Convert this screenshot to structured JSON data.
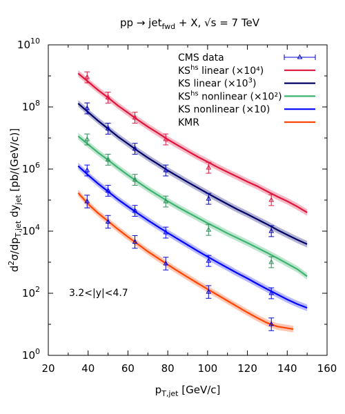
{
  "chart_data": {
    "type": "line",
    "title_main": "pp → jet",
    "title_sub": "fwd",
    "title_rest": " + X, √s = 7 TeV",
    "xlabel_main": "p",
    "xlabel_sub": "T,jet",
    "xlabel_rest": " [GeV/c]",
    "ylabel_lead": "d",
    "ylabel_sup": "2",
    "ylabel_a": "σ/dp",
    "ylabel_sub1": "T,jet",
    "ylabel_b": " dy",
    "ylabel_sub2": "jet",
    "ylabel_c": " [pb/(GeV/c)]",
    "annotation": "3.2<|y|<4.7",
    "xlim": [
      20,
      160
    ],
    "ylim": [
      1,
      10000000000
    ],
    "yscale": "log",
    "x_ticks": [
      "20",
      "40",
      "60",
      "80",
      "100",
      "120",
      "140",
      "160"
    ],
    "y_ticks": [
      {
        "base": "10",
        "exp": "0"
      },
      {
        "base": "10",
        "exp": "2"
      },
      {
        "base": "10",
        "exp": "4"
      },
      {
        "base": "10",
        "exp": "6"
      },
      {
        "base": "10",
        "exp": "8"
      },
      {
        "base": "10",
        "exp": "10"
      }
    ],
    "legend": [
      {
        "key": "data",
        "text": "CMS data",
        "sup": "",
        "rest": ""
      },
      {
        "key": "kshs_lin",
        "text": "KS",
        "sup": "hs",
        "rest": " linear (×10⁴)"
      },
      {
        "key": "ks_lin",
        "text": "KS linear (×10",
        "sup": "3",
        "rest": ")"
      },
      {
        "key": "kshs_nonlin",
        "text": "KS",
        "sup": "hs",
        "rest": " nonlinear (×10²)"
      },
      {
        "key": "ks_nonlin",
        "text": "KS nonlinear (×10)",
        "sup": "",
        "rest": ""
      },
      {
        "key": "kmr",
        "text": "KMR",
        "sup": "",
        "rest": ""
      }
    ],
    "data_series": [
      {
        "key": "kshs_lin",
        "color": "#dc143c",
        "points": [
          [
            39.5,
            900000000
          ],
          [
            50,
            200000000
          ],
          [
            63.5,
            45000000
          ],
          [
            79,
            9000000
          ],
          [
            100.5,
            1100000
          ],
          [
            132,
            100000
          ]
        ],
        "yerr_factor": 1.5
      },
      {
        "key": "ks_lin",
        "color": "#0000aa",
        "points": [
          [
            39.5,
            90000000
          ],
          [
            50,
            20000000
          ],
          [
            63.5,
            4500000
          ],
          [
            79,
            900000
          ],
          [
            100.5,
            110000
          ],
          [
            132,
            10000
          ]
        ],
        "yerr_factor": 1.5
      },
      {
        "key": "kshs_nonlin",
        "color": "#2e8b57",
        "points": [
          [
            39.5,
            9000000
          ],
          [
            50,
            2000000
          ],
          [
            63.5,
            450000
          ],
          [
            79,
            90000
          ],
          [
            100.5,
            11000
          ],
          [
            132,
            1000
          ]
        ],
        "yerr_factor": 1.5
      },
      {
        "key": "ks_nonlin",
        "color": "#0000ff",
        "points": [
          [
            39.5,
            900000
          ],
          [
            50,
            200000
          ],
          [
            63.5,
            45000
          ],
          [
            79,
            9000
          ],
          [
            100.5,
            1100
          ],
          [
            132,
            100
          ]
        ],
        "yerr_factor": 1.5
      },
      {
        "key": "kmr",
        "color": "#0000cc",
        "points": [
          [
            39.5,
            90000
          ],
          [
            50,
            20000
          ],
          [
            63.5,
            4500
          ],
          [
            79,
            900
          ],
          [
            100.5,
            110
          ],
          [
            132,
            10
          ]
        ],
        "yerr_factor": 1.6
      }
    ],
    "series": [
      {
        "key": "kshs_lin",
        "color": "#dc143c",
        "band_color": "#f4a0b0",
        "x": [
          35,
          40,
          45,
          50,
          55,
          60,
          65,
          70,
          75,
          80,
          85,
          90,
          95,
          100,
          105,
          110,
          115,
          120,
          125,
          130,
          135,
          140,
          145,
          150
        ],
        "y": [
          1200000000,
          650000000,
          350000000,
          200000000,
          110000000,
          65000000,
          38000000,
          23000000,
          14500000,
          9000000,
          5800000,
          3800000,
          2500000,
          1700000,
          1150000,
          800000,
          560000,
          390000,
          280000,
          190000,
          130000,
          92000,
          62000,
          40000
        ]
      },
      {
        "key": "ks_lin",
        "color": "#000066",
        "band_color": "#9999c8",
        "x": [
          35,
          40,
          45,
          50,
          55,
          60,
          65,
          70,
          75,
          80,
          85,
          90,
          95,
          100,
          105,
          110,
          115,
          120,
          125,
          130,
          135,
          140,
          145,
          150
        ],
        "y": [
          130000000,
          68000000,
          36000000,
          20000000,
          11000000,
          6500000,
          3800000,
          2300000,
          1450000,
          900000,
          580000,
          380000,
          250000,
          165000,
          110000,
          74000,
          50000,
          35000,
          24000,
          16500,
          11000,
          7600,
          5300,
          3800
        ]
      },
      {
        "key": "kshs_nonlin",
        "color": "#3cb371",
        "band_color": "#a8dcbc",
        "x": [
          35,
          40,
          45,
          50,
          55,
          60,
          65,
          70,
          75,
          80,
          85,
          90,
          95,
          100,
          105,
          110,
          115,
          120,
          125,
          130,
          135,
          140,
          145,
          150
        ],
        "y": [
          11500000,
          6200000,
          3400000,
          1950000,
          1100000,
          640000,
          380000,
          230000,
          145000,
          92000,
          60000,
          40000,
          27000,
          18000,
          12500,
          8500,
          6000,
          4200,
          2900,
          2000,
          1350,
          900,
          600,
          350
        ]
      },
      {
        "key": "ks_nonlin",
        "color": "#0000ff",
        "band_color": "#a0a0ff",
        "x": [
          35,
          40,
          45,
          50,
          55,
          60,
          65,
          70,
          75,
          80,
          85,
          90,
          95,
          100,
          105,
          110,
          115,
          120,
          125,
          130,
          135,
          140,
          145,
          150
        ],
        "y": [
          1250000,
          640000,
          340000,
          190000,
          105000,
          62000,
          37000,
          22500,
          14000,
          8800,
          5600,
          3600,
          2300,
          1500,
          990,
          660,
          440,
          300,
          200,
          135,
          92,
          63,
          45,
          34
        ]
      },
      {
        "key": "kmr",
        "color": "#ff4500",
        "band_color": "#ffb49a",
        "x": [
          35,
          40,
          45,
          50,
          55,
          60,
          65,
          70,
          75,
          80,
          85,
          90,
          95,
          100,
          105,
          110,
          115,
          120,
          125,
          130,
          135,
          140,
          143
        ],
        "y": [
          170000,
          75000,
          38000,
          21000,
          11500,
          6500,
          3800,
          2200,
          1350,
          830,
          520,
          330,
          210,
          135,
          88,
          57,
          37,
          24,
          16,
          11,
          8.5,
          7.5,
          7
        ]
      }
    ]
  }
}
